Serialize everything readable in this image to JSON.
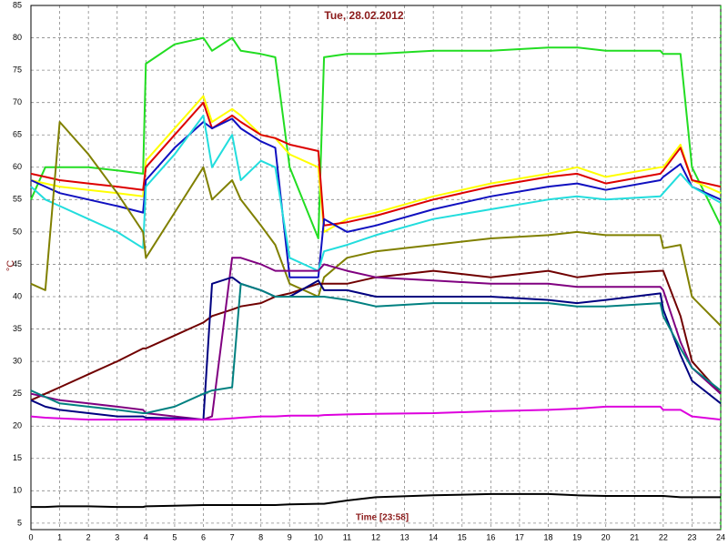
{
  "chart_data": {
    "type": "line",
    "title": "Tue, 28.02.2012",
    "x_label": "Time [23:58]",
    "y_label": "°C",
    "x": [
      0,
      0.5,
      1,
      2,
      3,
      3.9,
      4,
      5,
      6,
      6.3,
      7,
      7.3,
      8,
      8.5,
      9,
      10,
      10.2,
      11,
      12,
      14,
      16,
      18,
      19,
      20,
      21.9,
      22,
      22.6,
      23,
      24
    ],
    "xlim": [
      0,
      24
    ],
    "xticks": [
      0,
      1,
      2,
      3,
      4,
      5,
      6,
      7,
      8,
      9,
      10,
      11,
      12,
      13,
      14,
      15,
      16,
      17,
      18,
      19,
      20,
      21,
      22,
      23,
      24
    ],
    "ylim": [
      4,
      85
    ],
    "yticks": [
      5,
      10,
      15,
      20,
      25,
      30,
      35,
      40,
      45,
      50,
      55,
      60,
      65,
      70,
      75,
      80,
      85
    ],
    "grid": true,
    "series": [
      {
        "color": "#22dd22",
        "values": [
          55,
          60,
          60,
          60,
          59.5,
          59,
          76,
          79,
          80,
          78,
          80,
          78,
          77.5,
          77,
          60,
          49,
          77,
          77.5,
          77.5,
          78,
          78,
          78.5,
          78.5,
          78,
          78,
          77.5,
          77.5,
          60,
          51
        ]
      },
      {
        "color": "#ffff00",
        "values": [
          58,
          57.5,
          57,
          56.5,
          56,
          55.5,
          61,
          66,
          71,
          67,
          69,
          68,
          65,
          64.5,
          62,
          60,
          50,
          52,
          53,
          55.5,
          57.5,
          59,
          60,
          58.5,
          60,
          60,
          63.5,
          58,
          56
        ]
      },
      {
        "color": "#dd0000",
        "values": [
          59,
          58.5,
          58,
          57.5,
          57,
          56.5,
          60,
          65,
          70,
          66,
          68,
          67,
          65,
          64.5,
          63.5,
          62.5,
          51,
          51.5,
          52.5,
          55,
          57,
          58.5,
          59,
          57.5,
          59,
          59.5,
          63,
          58,
          57
        ]
      },
      {
        "color": "#1010c0",
        "values": [
          58,
          57,
          56,
          55,
          54,
          53,
          58,
          63,
          67,
          66,
          67.5,
          66,
          64,
          63,
          43,
          43,
          52,
          50,
          51,
          53.5,
          55.5,
          57,
          57.5,
          56.5,
          58,
          58.5,
          60.5,
          57,
          55
        ]
      },
      {
        "color": "#22dddd",
        "values": [
          57,
          55,
          54,
          52,
          50,
          47.5,
          57,
          62,
          68,
          60,
          65,
          58,
          61,
          60,
          46,
          44,
          47,
          48,
          49.5,
          52,
          53.5,
          55,
          55.5,
          55,
          55.5,
          56,
          59,
          57,
          54.5
        ]
      },
      {
        "color": "#808000",
        "values": [
          42,
          41,
          67,
          62,
          56,
          50,
          46,
          53,
          60,
          55,
          58,
          55,
          51,
          48,
          42,
          40,
          43,
          46,
          47,
          48,
          49,
          49.5,
          50,
          49.5,
          49.5,
          47.5,
          48,
          40,
          35.5
        ]
      },
      {
        "color": "#700000",
        "values": [
          24,
          25,
          26,
          28,
          30,
          32,
          32,
          34,
          36,
          37,
          38,
          38.5,
          39,
          40,
          40.5,
          42,
          42,
          42,
          43,
          44,
          43,
          44,
          43,
          43.5,
          44,
          44,
          37,
          30,
          25
        ]
      },
      {
        "color": "#800080",
        "values": [
          25,
          24.5,
          24,
          23.5,
          23,
          22.5,
          22,
          21.5,
          21,
          21.5,
          46,
          46,
          45,
          44,
          44,
          44,
          45,
          44,
          43,
          42.5,
          42,
          42,
          41.5,
          41.5,
          41.5,
          41,
          33,
          29,
          25
        ]
      },
      {
        "color": "#000080",
        "values": [
          24,
          23,
          22.5,
          22,
          21.5,
          21.5,
          21.3,
          21.2,
          21,
          42,
          43,
          42,
          41,
          40,
          40,
          42.5,
          41,
          41,
          40,
          40,
          40,
          39.5,
          39,
          39.5,
          40.5,
          38,
          31,
          27,
          23.5
        ]
      },
      {
        "color": "#008080",
        "values": [
          25.5,
          24.5,
          23.5,
          23,
          22.5,
          22,
          22,
          23,
          25,
          25.5,
          26,
          42,
          41,
          40,
          40,
          40,
          40,
          39.5,
          38.5,
          39,
          39,
          39,
          38.5,
          38.5,
          39,
          37,
          32,
          29,
          25.5
        ]
      },
      {
        "color": "#dd00dd",
        "values": [
          21.5,
          21.3,
          21.2,
          21,
          21,
          21,
          21,
          21,
          21,
          21,
          21.2,
          21.3,
          21.5,
          21.5,
          21.6,
          21.6,
          21.7,
          21.8,
          21.9,
          22,
          22.3,
          22.5,
          22.7,
          23,
          23,
          22.5,
          22.5,
          21.5,
          21
        ]
      },
      {
        "color": "#000000",
        "values": [
          7.5,
          7.5,
          7.6,
          7.6,
          7.5,
          7.5,
          7.6,
          7.7,
          7.8,
          7.8,
          7.8,
          7.8,
          7.8,
          7.8,
          7.9,
          8,
          8,
          8.5,
          9,
          9.3,
          9.5,
          9.5,
          9.3,
          9.2,
          9.2,
          9.2,
          9,
          9,
          9
        ]
      }
    ]
  }
}
